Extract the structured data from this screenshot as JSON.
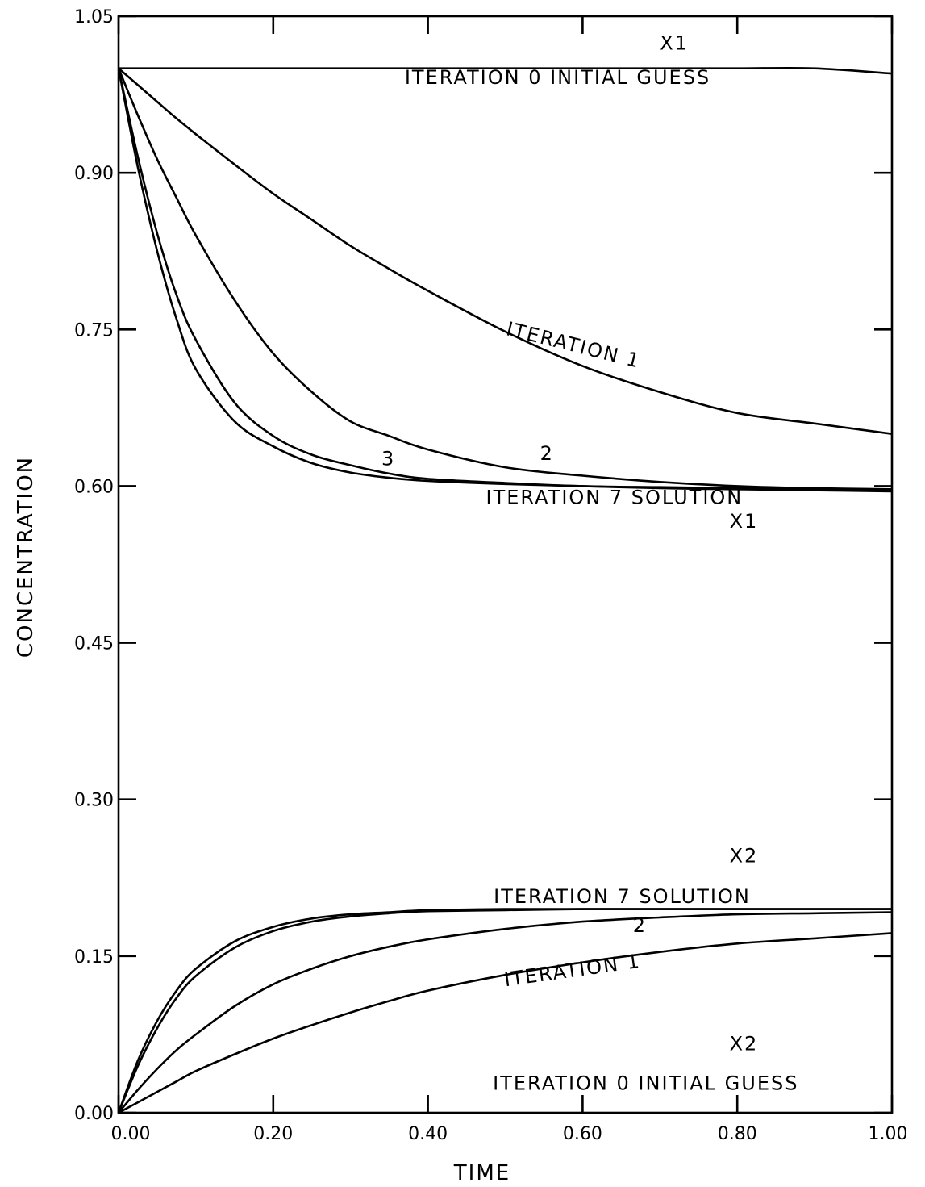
{
  "chart_data": {
    "type": "line",
    "title": "",
    "xlabel": "TIME",
    "ylabel": "CONCENTRATION",
    "xlim": [
      0.0,
      1.0
    ],
    "ylim": [
      0.0,
      1.05
    ],
    "x_ticks": [
      "0.00",
      "0.20",
      "0.40",
      "0.60",
      "0.80",
      "1.00"
    ],
    "y_ticks": [
      "0.00",
      "0.15",
      "0.30",
      "0.45",
      "0.60",
      "0.75",
      "0.90",
      "1.05"
    ],
    "grid": false,
    "x": [
      0.0,
      0.025,
      0.05,
      0.075,
      0.1,
      0.15,
      0.2,
      0.25,
      0.3,
      0.35,
      0.4,
      0.5,
      0.6,
      0.7,
      0.8,
      0.9,
      1.0
    ],
    "series": [
      {
        "y": [
          1.0,
          1.0,
          1.0,
          1.0,
          1.0,
          1.0,
          1.0,
          1.0,
          1.0,
          1.0,
          1.0,
          1.0,
          1.0,
          1.0,
          1.0,
          1.0,
          0.995
        ]
      },
      {
        "y": [
          1.0,
          0.984,
          0.968,
          0.952,
          0.937,
          0.908,
          0.88,
          0.855,
          0.83,
          0.808,
          0.787,
          0.748,
          0.715,
          0.69,
          0.67,
          0.66,
          0.65
        ]
      },
      {
        "y": [
          1.0,
          0.955,
          0.913,
          0.876,
          0.84,
          0.778,
          0.727,
          0.69,
          0.662,
          0.648,
          0.635,
          0.618,
          0.61,
          0.604,
          0.6,
          0.598,
          0.597
        ]
      },
      {
        "y": [
          1.0,
          0.915,
          0.842,
          0.783,
          0.74,
          0.68,
          0.648,
          0.63,
          0.62,
          0.612,
          0.607,
          0.603,
          0.6,
          0.599,
          0.598,
          0.597,
          0.596
        ]
      },
      {
        "y": [
          1.0,
          0.905,
          0.825,
          0.76,
          0.712,
          0.662,
          0.638,
          0.622,
          0.613,
          0.608,
          0.605,
          0.602,
          0.6,
          0.598,
          0.597,
          0.596,
          0.595
        ]
      },
      {
        "y": [
          0.0,
          0.01,
          0.02,
          0.03,
          0.04,
          0.056,
          0.071,
          0.084,
          0.096,
          0.107,
          0.117,
          0.132,
          0.144,
          0.154,
          0.162,
          0.167,
          0.172
        ]
      },
      {
        "y": [
          0.0,
          0.022,
          0.042,
          0.06,
          0.075,
          0.102,
          0.123,
          0.138,
          0.15,
          0.159,
          0.166,
          0.176,
          0.183,
          0.187,
          0.19,
          0.191,
          0.192
        ]
      },
      {
        "y": [
          0.0,
          0.045,
          0.081,
          0.11,
          0.131,
          0.158,
          0.174,
          0.183,
          0.188,
          0.191,
          0.193,
          0.194,
          0.195,
          0.195,
          0.195,
          0.195,
          0.195
        ]
      },
      {
        "y": [
          0.0,
          0.05,
          0.088,
          0.117,
          0.138,
          0.164,
          0.178,
          0.186,
          0.19,
          0.192,
          0.194,
          0.195,
          0.195,
          0.195,
          0.195,
          0.195,
          0.195
        ]
      }
    ],
    "annotations": [
      {
        "text": "X1",
        "x": 0.7,
        "y": 1.018
      },
      {
        "text": "ITERATION 0  INITIAL GUESS",
        "x": 0.37,
        "y": 0.985
      },
      {
        "text": "ITERATION 1",
        "x": 0.5,
        "y": 0.745,
        "rotate": 14
      },
      {
        "text": "2",
        "x": 0.545,
        "y": 0.625
      },
      {
        "text": "3",
        "x": 0.34,
        "y": 0.62
      },
      {
        "text": "ITERATION 7  SOLUTION",
        "x": 0.475,
        "y": 0.583
      },
      {
        "text": "X1",
        "x": 0.79,
        "y": 0.56
      },
      {
        "text": "X2",
        "x": 0.79,
        "y": 0.24
      },
      {
        "text": "ITERATION 7  SOLUTION",
        "x": 0.485,
        "y": 0.201
      },
      {
        "text": "2",
        "x": 0.665,
        "y": 0.173
      },
      {
        "text": "ITERATION 1",
        "x": 0.5,
        "y": 0.121,
        "rotate": -8
      },
      {
        "text": "X2",
        "x": 0.79,
        "y": 0.06
      },
      {
        "text": "ITERATION 0  INITIAL GUESS",
        "x": 0.484,
        "y": 0.022
      }
    ]
  }
}
